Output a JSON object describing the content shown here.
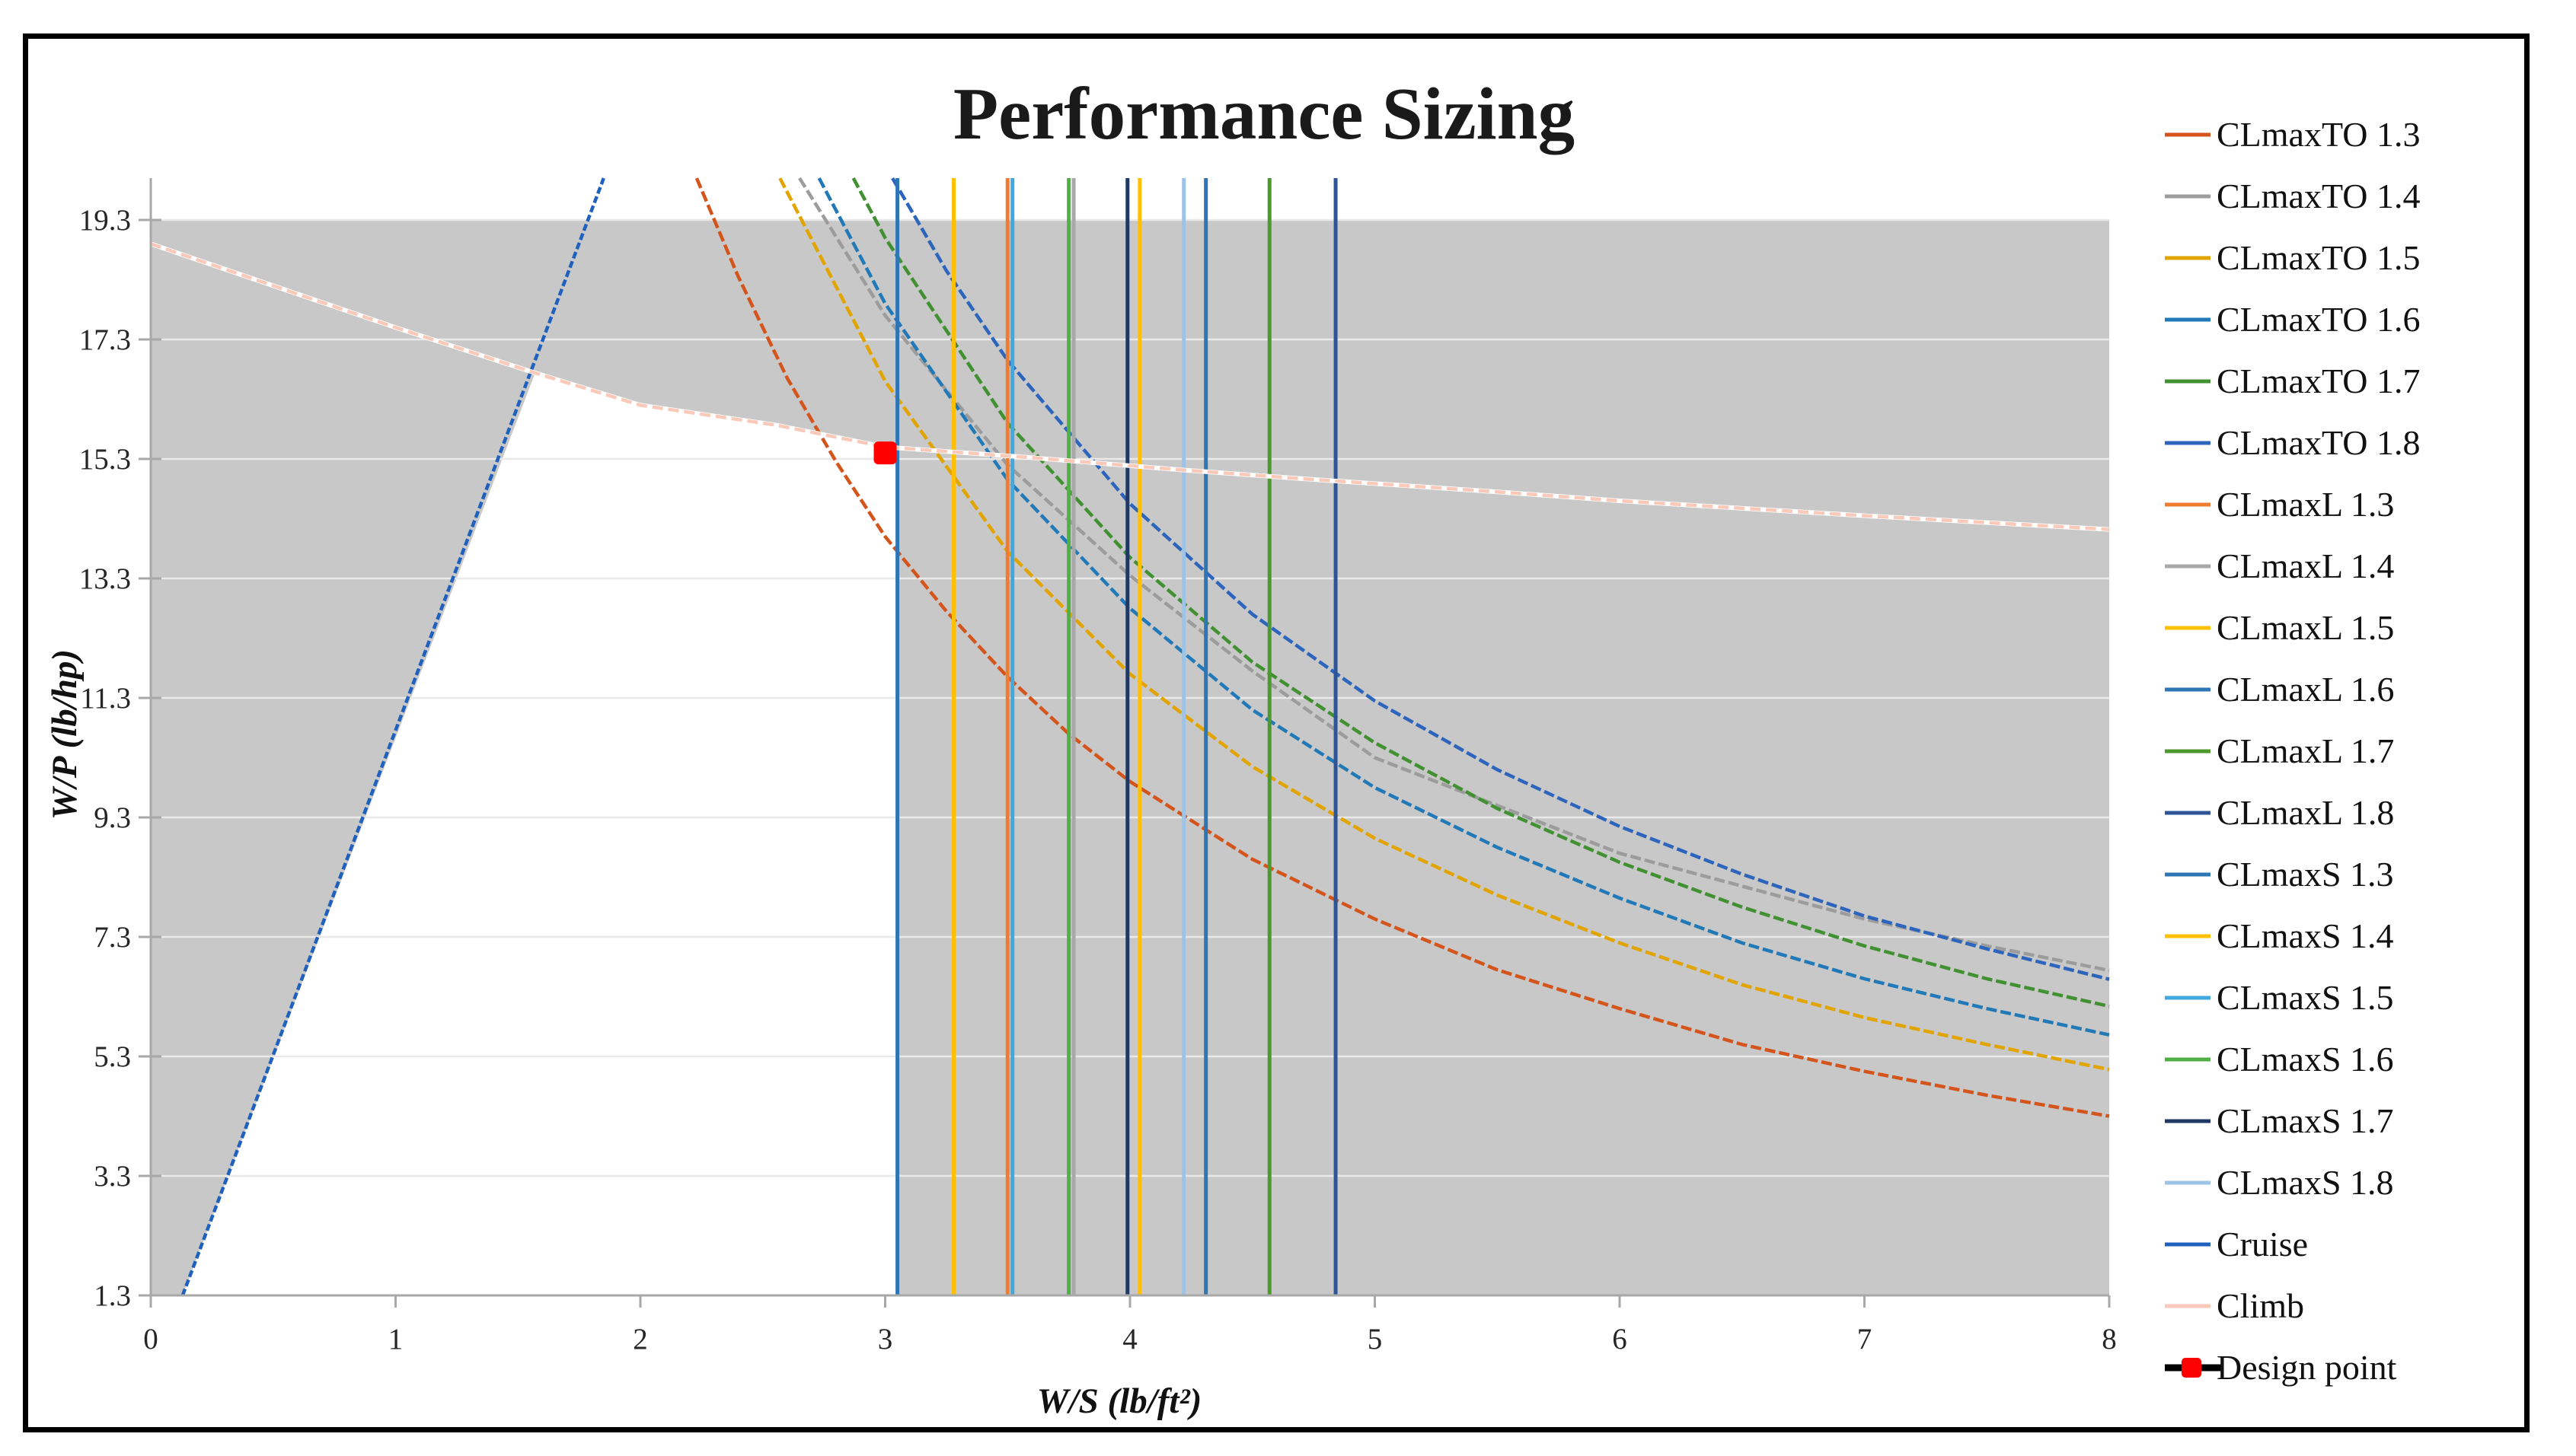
{
  "chart_data": {
    "type": "line",
    "title": "Performance Sizing",
    "xlabel": "W/S (lb/ft²)",
    "ylabel": "W/P (lb/hp)",
    "xlim": [
      0,
      8
    ],
    "ylim": [
      1.3,
      20.0
    ],
    "x_ticks": [
      0,
      1,
      2,
      3,
      4,
      5,
      6,
      7,
      8
    ],
    "y_ticks": [
      1.3,
      3.3,
      5.3,
      7.3,
      9.3,
      11.3,
      13.3,
      15.3,
      17.3,
      19.3
    ],
    "grid": "horizontal-only",
    "legend_position": "right",
    "colors": {
      "infeasible_gray": "#c8c8c8",
      "gridline": "#e9e9e9",
      "axis_line": "#a8a8a8",
      "design_point_red": "#ff0000"
    },
    "feasible_region_white": [
      [
        0.13,
        1.3
      ],
      [
        1.57,
        16.74
      ],
      [
        2.0,
        16.2
      ],
      [
        2.55,
        15.87
      ],
      [
        3.0,
        15.5
      ],
      [
        3.05,
        15.49
      ],
      [
        3.05,
        1.3
      ]
    ],
    "series": [
      {
        "name": "CLmaxTO 1.3",
        "type": "curve",
        "color": "#d4551c",
        "dash": "14 5",
        "points": [
          [
            2.23,
            20
          ],
          [
            2.4,
            18.35
          ],
          [
            2.6,
            16.65
          ],
          [
            2.8,
            15.25
          ],
          [
            3.0,
            14.0
          ],
          [
            3.25,
            12.75
          ],
          [
            3.5,
            11.65
          ],
          [
            3.75,
            10.7
          ],
          [
            4,
            9.9
          ],
          [
            4.5,
            8.6
          ],
          [
            5,
            7.6
          ],
          [
            5.5,
            6.75
          ],
          [
            6,
            6.1
          ],
          [
            6.5,
            5.5
          ],
          [
            7,
            5.05
          ],
          [
            7.5,
            4.65
          ],
          [
            8,
            4.3
          ]
        ]
      },
      {
        "name": "CLmaxTO 1.4",
        "type": "curve",
        "color": "#9c9c9c",
        "dash": "14 5",
        "points": [
          [
            2.65,
            20
          ],
          [
            3,
            17.7
          ],
          [
            3.5,
            15.2
          ],
          [
            4,
            13.35
          ],
          [
            4.5,
            11.75
          ],
          [
            5,
            10.3
          ],
          [
            5.5,
            9.5
          ],
          [
            6,
            8.7
          ],
          [
            6.5,
            8.15
          ],
          [
            7,
            7.6
          ],
          [
            7.5,
            7.15
          ],
          [
            8,
            6.74
          ]
        ]
      },
      {
        "name": "CLmaxTO 1.5",
        "type": "curve",
        "color": "#e2a400",
        "dash": "14 5",
        "points": [
          [
            2.57,
            20
          ],
          [
            3,
            16.6
          ],
          [
            3.5,
            13.75
          ],
          [
            4,
            11.7
          ],
          [
            4.5,
            10.15
          ],
          [
            5,
            8.95
          ],
          [
            5.5,
            8.0
          ],
          [
            6,
            7.2
          ],
          [
            6.5,
            6.5
          ],
          [
            7,
            5.95
          ],
          [
            7.5,
            5.5
          ],
          [
            8,
            5.08
          ]
        ]
      },
      {
        "name": "CLmaxTO 1.6",
        "type": "curve",
        "color": "#2279b8",
        "dash": "14 5",
        "points": [
          [
            2.73,
            20
          ],
          [
            3,
            17.9
          ],
          [
            3.5,
            14.95
          ],
          [
            4,
            12.8
          ],
          [
            4.5,
            11.1
          ],
          [
            5,
            9.8
          ],
          [
            5.5,
            8.8
          ],
          [
            6,
            7.95
          ],
          [
            6.5,
            7.2
          ],
          [
            7,
            6.6
          ],
          [
            7.5,
            6.1
          ],
          [
            8,
            5.66
          ]
        ]
      },
      {
        "name": "CLmaxTO 1.7",
        "type": "curve",
        "color": "#419132",
        "dash": "14 5",
        "points": [
          [
            2.87,
            20
          ],
          [
            3,
            19.0
          ],
          [
            3.5,
            15.9
          ],
          [
            4,
            13.65
          ],
          [
            4.5,
            11.9
          ],
          [
            5,
            10.55
          ],
          [
            5.5,
            9.45
          ],
          [
            6,
            8.55
          ],
          [
            6.5,
            7.8
          ],
          [
            7,
            7.15
          ],
          [
            7.5,
            6.6
          ],
          [
            8,
            6.14
          ]
        ]
      },
      {
        "name": "CLmaxTO 1.8",
        "type": "curve",
        "color": "#2c65bb",
        "dash": "14 5",
        "points": [
          [
            3.03,
            20
          ],
          [
            3.25,
            18.45
          ],
          [
            3.5,
            16.95
          ],
          [
            4,
            14.55
          ],
          [
            4.5,
            12.7
          ],
          [
            5,
            11.25
          ],
          [
            5.5,
            10.1
          ],
          [
            6,
            9.15
          ],
          [
            6.5,
            8.35
          ],
          [
            7,
            7.65
          ],
          [
            7.5,
            7.1
          ],
          [
            8,
            6.59
          ]
        ]
      },
      {
        "name": "CLmaxL 1.3",
        "type": "vline",
        "color": "#ee7d31",
        "x": 3.5
      },
      {
        "name": "CLmaxL 1.4",
        "type": "vline",
        "color": "#a8a8a8",
        "x": 3.77
      },
      {
        "name": "CLmaxL 1.5",
        "type": "vline",
        "color": "#ffc003",
        "x": 4.04
      },
      {
        "name": "CLmaxL 1.6",
        "type": "vline",
        "color": "#2e75b6",
        "x": 4.31
      },
      {
        "name": "CLmaxL 1.7",
        "type": "vline",
        "color": "#4c9a2d",
        "x": 4.57
      },
      {
        "name": "CLmaxL 1.8",
        "type": "vline",
        "color": "#2f5597",
        "x": 4.84
      },
      {
        "name": "CLmaxS 1.3",
        "type": "vline",
        "color": "#2e75b6",
        "x": 3.05
      },
      {
        "name": "CLmaxS 1.4",
        "type": "vline",
        "color": "#ffc003",
        "x": 3.28
      },
      {
        "name": "CLmaxS 1.5",
        "type": "vline",
        "color": "#43a8de",
        "x": 3.52
      },
      {
        "name": "CLmaxS 1.6",
        "type": "vline",
        "color": "#50b044",
        "x": 3.75
      },
      {
        "name": "CLmaxS 1.7",
        "type": "vline",
        "color": "#1f3864",
        "x": 3.99
      },
      {
        "name": "CLmaxS 1.8",
        "type": "vline",
        "color": "#9dc3e6",
        "x": 4.22
      },
      {
        "name": "Cruise",
        "type": "curve",
        "color": "#2061be",
        "dash": "9 4",
        "points": [
          [
            0.13,
            1.3
          ],
          [
            1.85,
            20
          ]
        ]
      },
      {
        "name": "Climb",
        "type": "curve",
        "color": "#f9c9b9",
        "dash": "14 7",
        "white_base": true,
        "points": [
          [
            0,
            18.9
          ],
          [
            0.5,
            18.2
          ],
          [
            1.0,
            17.5
          ],
          [
            1.57,
            16.74
          ],
          [
            2.0,
            16.2
          ],
          [
            2.55,
            15.87
          ],
          [
            3.0,
            15.5
          ],
          [
            3.6,
            15.32
          ],
          [
            4.2,
            15.12
          ],
          [
            4.7,
            14.97
          ],
          [
            5.5,
            14.75
          ],
          [
            6,
            14.6
          ],
          [
            7,
            14.35
          ],
          [
            8,
            14.12
          ]
        ]
      },
      {
        "name": "Design point",
        "type": "point",
        "color": "#ff0000",
        "line_color": "#000000",
        "x": 3.0,
        "y": 15.4
      }
    ]
  },
  "legend": {
    "entries": [
      "CLmaxTO 1.3",
      "CLmaxTO 1.4",
      "CLmaxTO 1.5",
      "CLmaxTO 1.6",
      "CLmaxTO 1.7",
      "CLmaxTO 1.8",
      "CLmaxL 1.3",
      "CLmaxL 1.4",
      "CLmaxL 1.5",
      "CLmaxL 1.6",
      "CLmaxL 1.7",
      "CLmaxL 1.8",
      "CLmaxS 1.3",
      "CLmaxS 1.4",
      "CLmaxS 1.5",
      "CLmaxS 1.6",
      "CLmaxS 1.7",
      "CLmaxS 1.8",
      "Cruise",
      "Climb",
      "Design point"
    ]
  }
}
